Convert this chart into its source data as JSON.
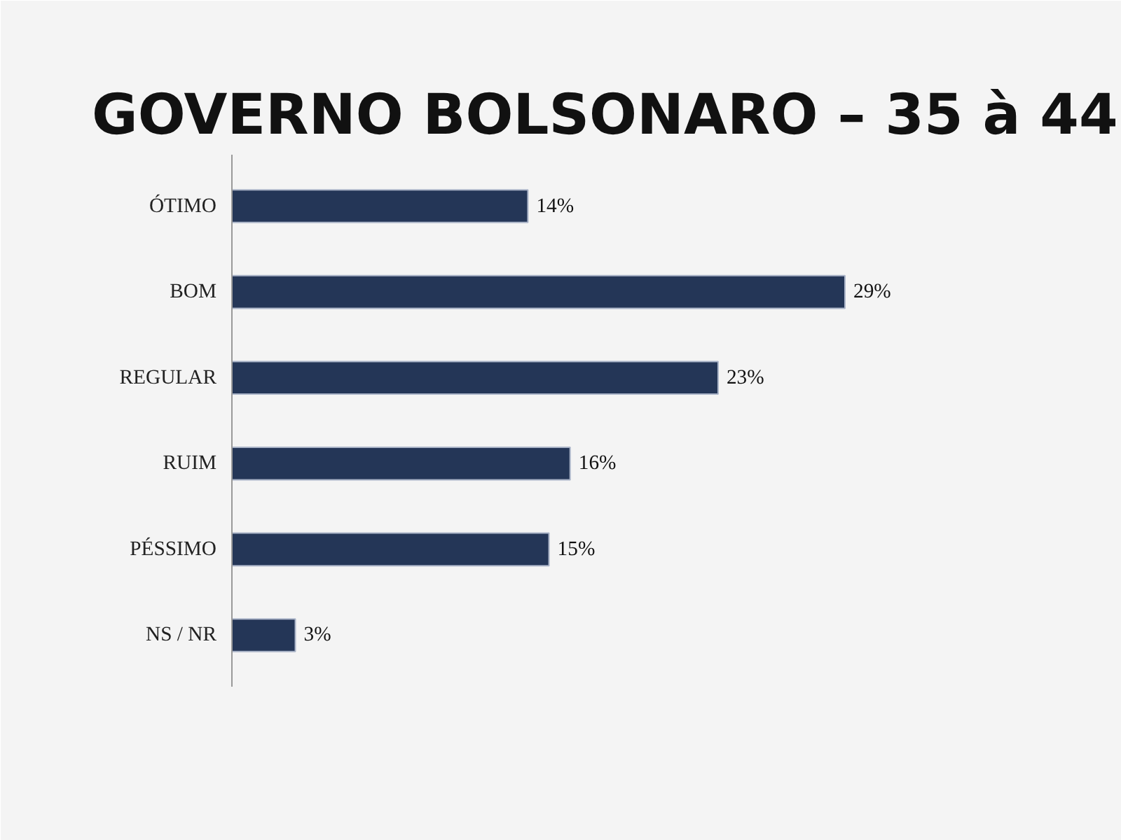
{
  "chart_data": {
    "type": "bar",
    "orientation": "horizontal",
    "title": "GOVERNO BOLSONARO – 35 à 44",
    "categories": [
      "ÓTIMO",
      "BOM",
      "REGULAR",
      "RUIM",
      "PÉSSIMO",
      "NS / NR"
    ],
    "values": [
      14,
      29,
      23,
      16,
      15,
      3
    ],
    "value_labels": [
      "14%",
      "29%",
      "23%",
      "16%",
      "15%",
      "3%"
    ],
    "color": "#243657"
  }
}
